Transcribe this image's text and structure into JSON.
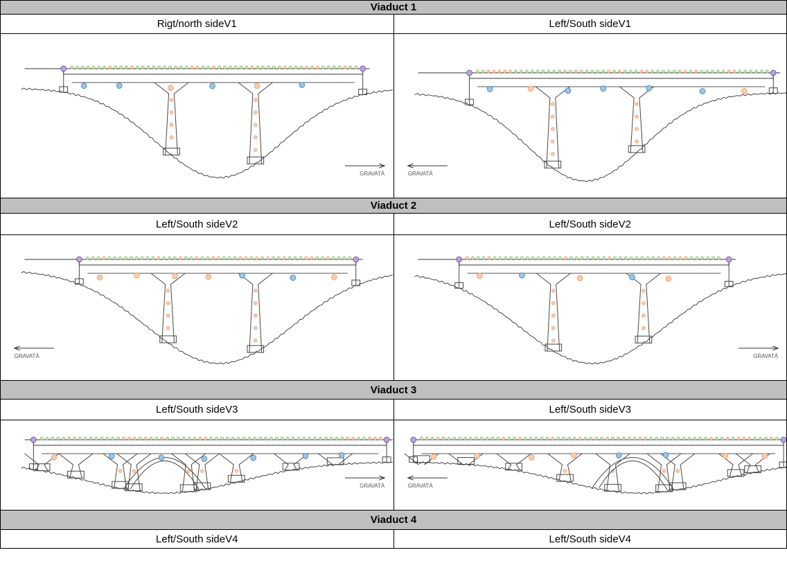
{
  "sections": [
    {
      "title": "Viaduct 1",
      "cells": [
        {
          "label": "Rigt/north sideV1",
          "direction": "GRAVATÁ"
        },
        {
          "label": "Left/South sideV1",
          "direction": "GRAVATÁ"
        }
      ]
    },
    {
      "title": "Viaduct 2",
      "cells": [
        {
          "label": "Left/South sideV2",
          "direction": "GRAVATÁ"
        },
        {
          "label": "Left/South sideV2",
          "direction": "GRAVATÁ"
        }
      ]
    },
    {
      "title": "Viaduct 3",
      "cells": [
        {
          "label": "Left/South sideV3",
          "direction": "GRAVATÁ"
        },
        {
          "label": "Left/South sideV3",
          "direction": "GRAVATÁ"
        }
      ]
    },
    {
      "title": "Viaduct 4",
      "cells": [
        {
          "label": "Left/South sideV4"
        },
        {
          "label": "Left/South sideV4"
        }
      ]
    }
  ]
}
